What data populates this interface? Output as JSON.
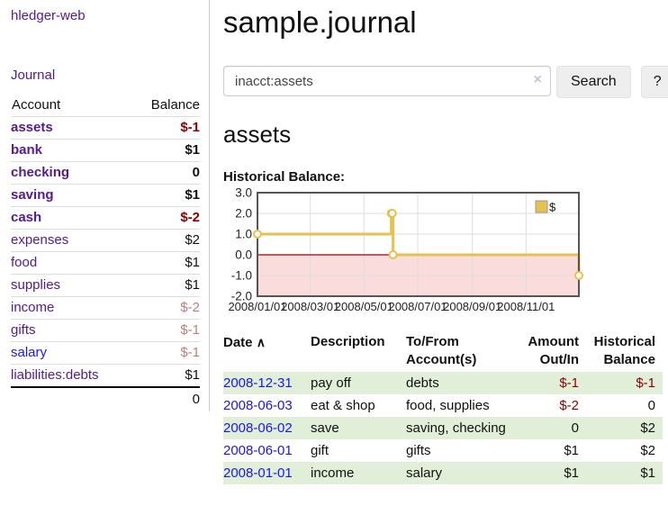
{
  "app": {
    "brand": "hledger-web",
    "nav_journal": "Journal"
  },
  "sidebar": {
    "columns": {
      "account": "Account",
      "balance": "Balance"
    },
    "accounts": [
      {
        "name": "assets",
        "balance": "$-1"
      },
      {
        "name": "bank",
        "balance": "$1"
      },
      {
        "name": "checking",
        "balance": "0"
      },
      {
        "name": "saving",
        "balance": "$1"
      },
      {
        "name": "cash",
        "balance": "$-2"
      },
      {
        "name": "expenses",
        "balance": "$2"
      },
      {
        "name": "food",
        "balance": "$1"
      },
      {
        "name": "supplies",
        "balance": "$1"
      },
      {
        "name": "income",
        "balance": "$-2"
      },
      {
        "name": "gifts",
        "balance": "$-1"
      },
      {
        "name": "salary",
        "balance": "$-1"
      },
      {
        "name": "liabilities:debts",
        "balance": "$1"
      }
    ],
    "total": "0"
  },
  "header": {
    "title": "sample.journal"
  },
  "search": {
    "value": "inacct:assets",
    "clear_icon": "×",
    "button_label": "Search",
    "help_label": "?"
  },
  "account_page": {
    "title": "assets",
    "chart_label": "Historical Balance:"
  },
  "icons": {
    "sort_ascending": "∧"
  },
  "chart_data": {
    "type": "line",
    "title": "Historical Balance",
    "series": [
      {
        "name": "$",
        "step": true,
        "points": [
          [
            "2008-01-01",
            1
          ],
          [
            "2008-06-01",
            2
          ],
          [
            "2008-06-02",
            2
          ],
          [
            "2008-06-03",
            0
          ],
          [
            "2008-12-31",
            -1
          ]
        ]
      }
    ],
    "x_range": [
      "2008-01-01",
      "2008-12-31"
    ],
    "x_ticks": [
      {
        "date": "2008-01-01",
        "label": "2008/01/01"
      },
      {
        "date": "2008-03-01",
        "label": "2008/03/01"
      },
      {
        "date": "2008-05-01",
        "label": "2008/05/01"
      },
      {
        "date": "2008-07-01",
        "label": "2008/07/01"
      },
      {
        "date": "2008-09-01",
        "label": "2008/09/01"
      },
      {
        "date": "2008-11-01",
        "label": "2008/11/01"
      }
    ],
    "y_ticks": [
      "3.0",
      "2.0",
      "1.0",
      "0.0",
      "-1.0",
      "-2.0"
    ],
    "ylim": [
      -2,
      3
    ],
    "legend": {
      "label": "$",
      "position": "top-right"
    },
    "colors": {
      "line": "#e6c14e",
      "marker_fill": "#ffffff",
      "negative_region": "#fbdcdc",
      "zero_line": "#a00000",
      "grid": "#dddddd",
      "frame": "#555555"
    }
  },
  "register": {
    "columns": {
      "date": "Date",
      "description": "Description",
      "accounts": "To/From Account(s)",
      "amount": "Amount Out/In",
      "balance": "Historical Balance"
    },
    "rows": [
      {
        "date": "2008-12-31",
        "description": "pay off",
        "accounts": "debts",
        "amount": "$-1",
        "balance": "$-1"
      },
      {
        "date": "2008-06-03",
        "description": "eat & shop",
        "accounts": "food, supplies",
        "amount": "$-2",
        "balance": "0"
      },
      {
        "date": "2008-06-02",
        "description": "save",
        "accounts": "saving, checking",
        "amount": "0",
        "balance": "$2"
      },
      {
        "date": "2008-06-01",
        "description": "gift",
        "accounts": "gifts",
        "amount": "$1",
        "balance": "$2"
      },
      {
        "date": "2008-01-01",
        "description": "income",
        "accounts": "salary",
        "amount": "$1",
        "balance": "$1"
      }
    ]
  }
}
